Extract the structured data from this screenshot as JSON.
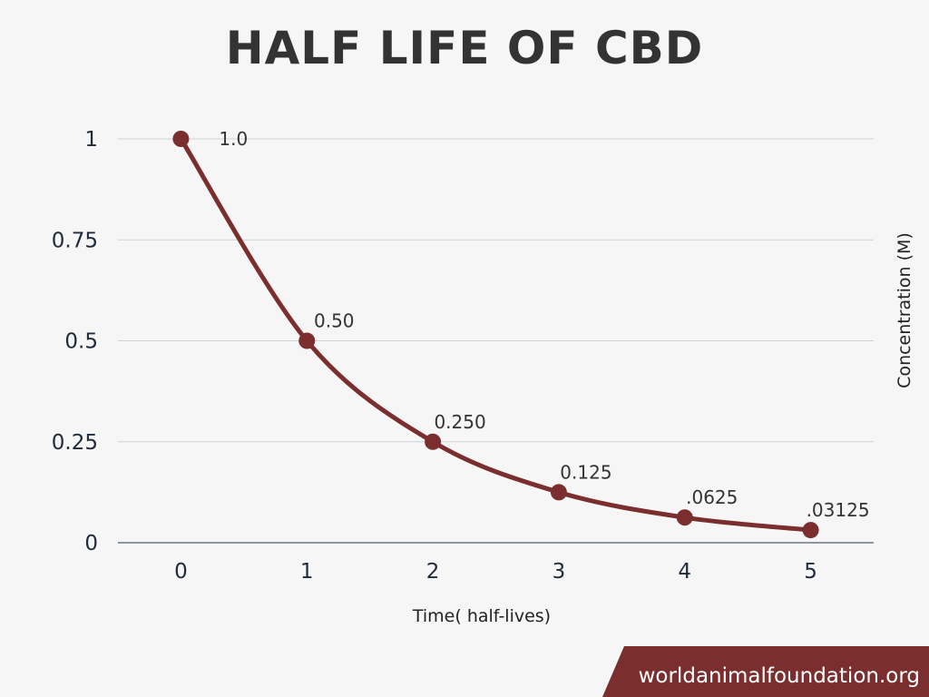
{
  "chart_data": {
    "type": "line",
    "title": "HALF LIFE OF CBD",
    "xlabel": "Time( half-lives)",
    "ylabel": "Concentration (M)",
    "x": [
      0,
      1,
      2,
      3,
      4,
      5
    ],
    "y": [
      1.0,
      0.5,
      0.25,
      0.125,
      0.0625,
      0.03125
    ],
    "data_labels": [
      "1.0",
      "0.50",
      "0.250",
      "0.125",
      ".0625",
      ".03125"
    ],
    "xticks": [
      "0",
      "1",
      "2",
      "3",
      "4",
      "5"
    ],
    "yticks": [
      {
        "value": 0,
        "label": "0"
      },
      {
        "value": 0.25,
        "label": "0.25"
      },
      {
        "value": 0.5,
        "label": "0.5"
      },
      {
        "value": 0.75,
        "label": "0.75"
      },
      {
        "value": 1,
        "label": "1"
      }
    ],
    "xlim": [
      -0.5,
      5.5
    ],
    "ylim": [
      0,
      1
    ],
    "grid": true,
    "line_color": "#7b2e2e"
  },
  "footer": {
    "site": "worldanimalfoundation.org",
    "bg_color": "#7b2e2e"
  }
}
